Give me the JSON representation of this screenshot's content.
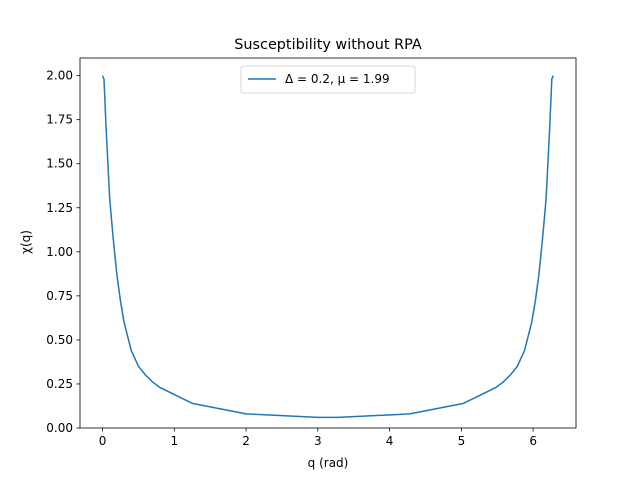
{
  "chart_data": {
    "type": "line",
    "title": "Susceptibility without RPA",
    "xlabel": "q (rad)",
    "ylabel": "χ(q)",
    "xlim": [
      -0.314,
      6.597
    ],
    "ylim": [
      0.0,
      2.1
    ],
    "x_ticks": [
      0,
      1,
      2,
      3,
      4,
      5,
      6
    ],
    "x_tick_labels": [
      "0",
      "1",
      "2",
      "3",
      "4",
      "5",
      "6"
    ],
    "y_ticks": [
      0.0,
      0.25,
      0.5,
      0.75,
      1.0,
      1.25,
      1.5,
      1.75,
      2.0
    ],
    "y_tick_labels": [
      "0.00",
      "0.25",
      "0.50",
      "0.75",
      "1.00",
      "1.25",
      "1.50",
      "1.75",
      "2.00"
    ],
    "grid": false,
    "legend_position": "top-center",
    "series": [
      {
        "name": "Δ =  0.2, μ =  1.99",
        "color": "#1f77b4",
        "x": [
          0.0,
          0.02,
          0.05,
          0.1,
          0.15,
          0.2,
          0.25,
          0.3,
          0.4,
          0.5,
          0.6,
          0.7,
          0.8,
          1.0,
          1.25,
          1.5,
          2.0,
          2.5,
          3.0,
          3.14159,
          3.28,
          3.78,
          4.28,
          4.78,
          5.03,
          5.28,
          5.48,
          5.58,
          5.68,
          5.78,
          5.88,
          5.98,
          6.03,
          6.08,
          6.13,
          6.18,
          6.23,
          6.26,
          6.28
        ],
        "y": [
          2.0,
          1.98,
          1.7,
          1.3,
          1.07,
          0.87,
          0.72,
          0.6,
          0.44,
          0.35,
          0.3,
          0.26,
          0.23,
          0.19,
          0.14,
          0.12,
          0.08,
          0.07,
          0.06,
          0.06,
          0.06,
          0.07,
          0.08,
          0.12,
          0.14,
          0.19,
          0.23,
          0.26,
          0.3,
          0.35,
          0.44,
          0.6,
          0.72,
          0.87,
          1.07,
          1.3,
          1.7,
          1.98,
          2.0
        ]
      }
    ]
  }
}
